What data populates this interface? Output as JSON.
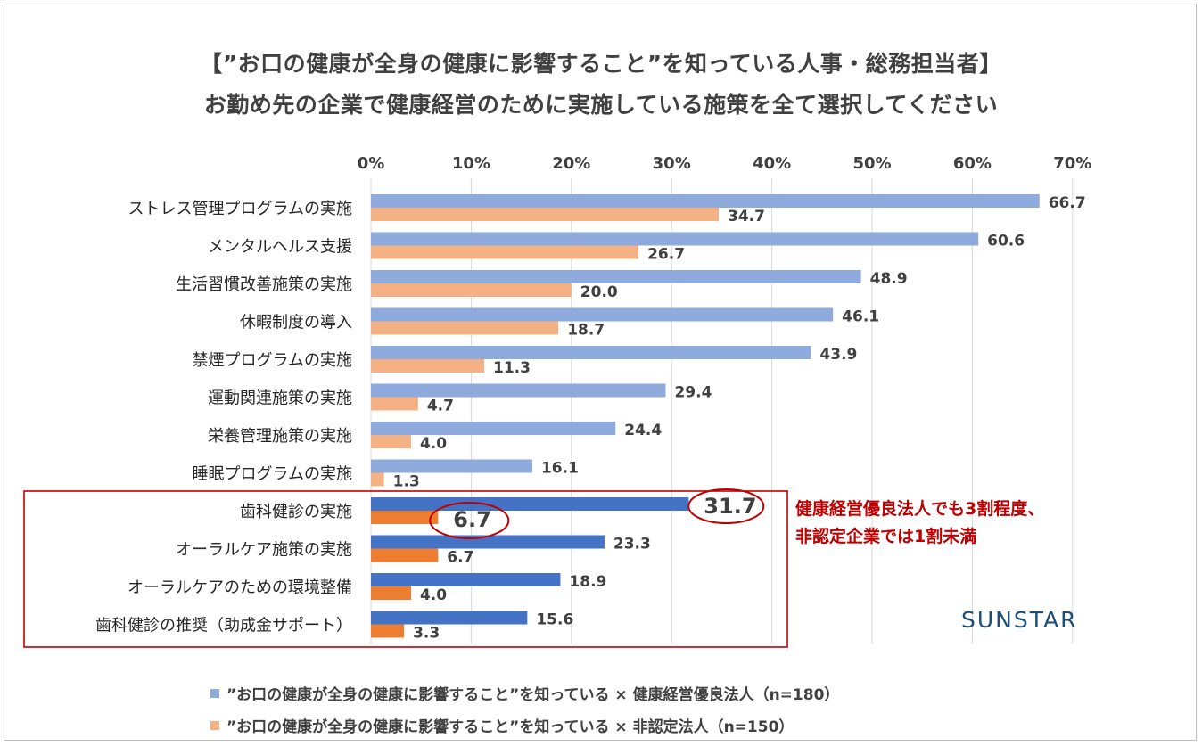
{
  "chart_data": {
    "type": "bar",
    "orientation": "horizontal",
    "title_line1": "【”お口の健康が全身の健康に影響すること”を知っている人事・総務担当者】",
    "title_line2": "お勤め先の企業で健康経営のために実施している施策を全て選択してください",
    "xlim": [
      0,
      70
    ],
    "x_ticks": [
      "0%",
      "10%",
      "20%",
      "30%",
      "40%",
      "50%",
      "60%",
      "70%"
    ],
    "categories": [
      "ストレス管理プログラムの実施",
      "メンタルヘルス支援",
      "生活習慣改善施策の実施",
      "休暇制度の導入",
      "禁煙プログラムの実施",
      "運動関連施策の実施",
      "栄養管理施策の実施",
      "睡眠プログラムの実施",
      "歯科健診の実施",
      "オーラルケア施策の実施",
      "オーラルケアのための環境整備",
      "歯科健診の推奨（助成金サポート）"
    ],
    "series": [
      {
        "name": "”お口の健康が全身の健康に影響すること”を知っている × 健康経営優良法人（n=180）",
        "values": [
          66.7,
          60.6,
          48.9,
          46.1,
          43.9,
          29.4,
          24.4,
          16.1,
          31.7,
          23.3,
          18.9,
          15.6
        ],
        "value_labels": [
          "66.7",
          "60.6",
          "48.9",
          "46.1",
          "43.9",
          "29.4",
          "24.4",
          "16.1",
          "31.7",
          "23.3",
          "18.9",
          "15.6"
        ],
        "color": "#8faadc",
        "highlight_color": "#4472c4"
      },
      {
        "name": "”お口の健康が全身の健康に影響すること”を知っている × 非認定法人（n=150）",
        "values": [
          34.7,
          26.7,
          20.0,
          18.7,
          11.3,
          4.7,
          4.0,
          1.3,
          6.7,
          6.7,
          4.0,
          3.3
        ],
        "value_labels": [
          "34.7",
          "26.7",
          "20.0",
          "18.7",
          "11.3",
          "4.7",
          "4.0",
          "1.3",
          "6.7",
          "6.7",
          "4.0",
          "3.3"
        ],
        "color": "#f4b183",
        "highlight_color": "#ed7d31"
      }
    ],
    "highlighted_categories_from_index": 8,
    "annotation": {
      "line1": "健康経営優良法人でも3割程度、",
      "line2": "非認定企業では1割未満",
      "color": "#c00000"
    },
    "legend_position": "bottom"
  },
  "brand": "SUNSTAR"
}
